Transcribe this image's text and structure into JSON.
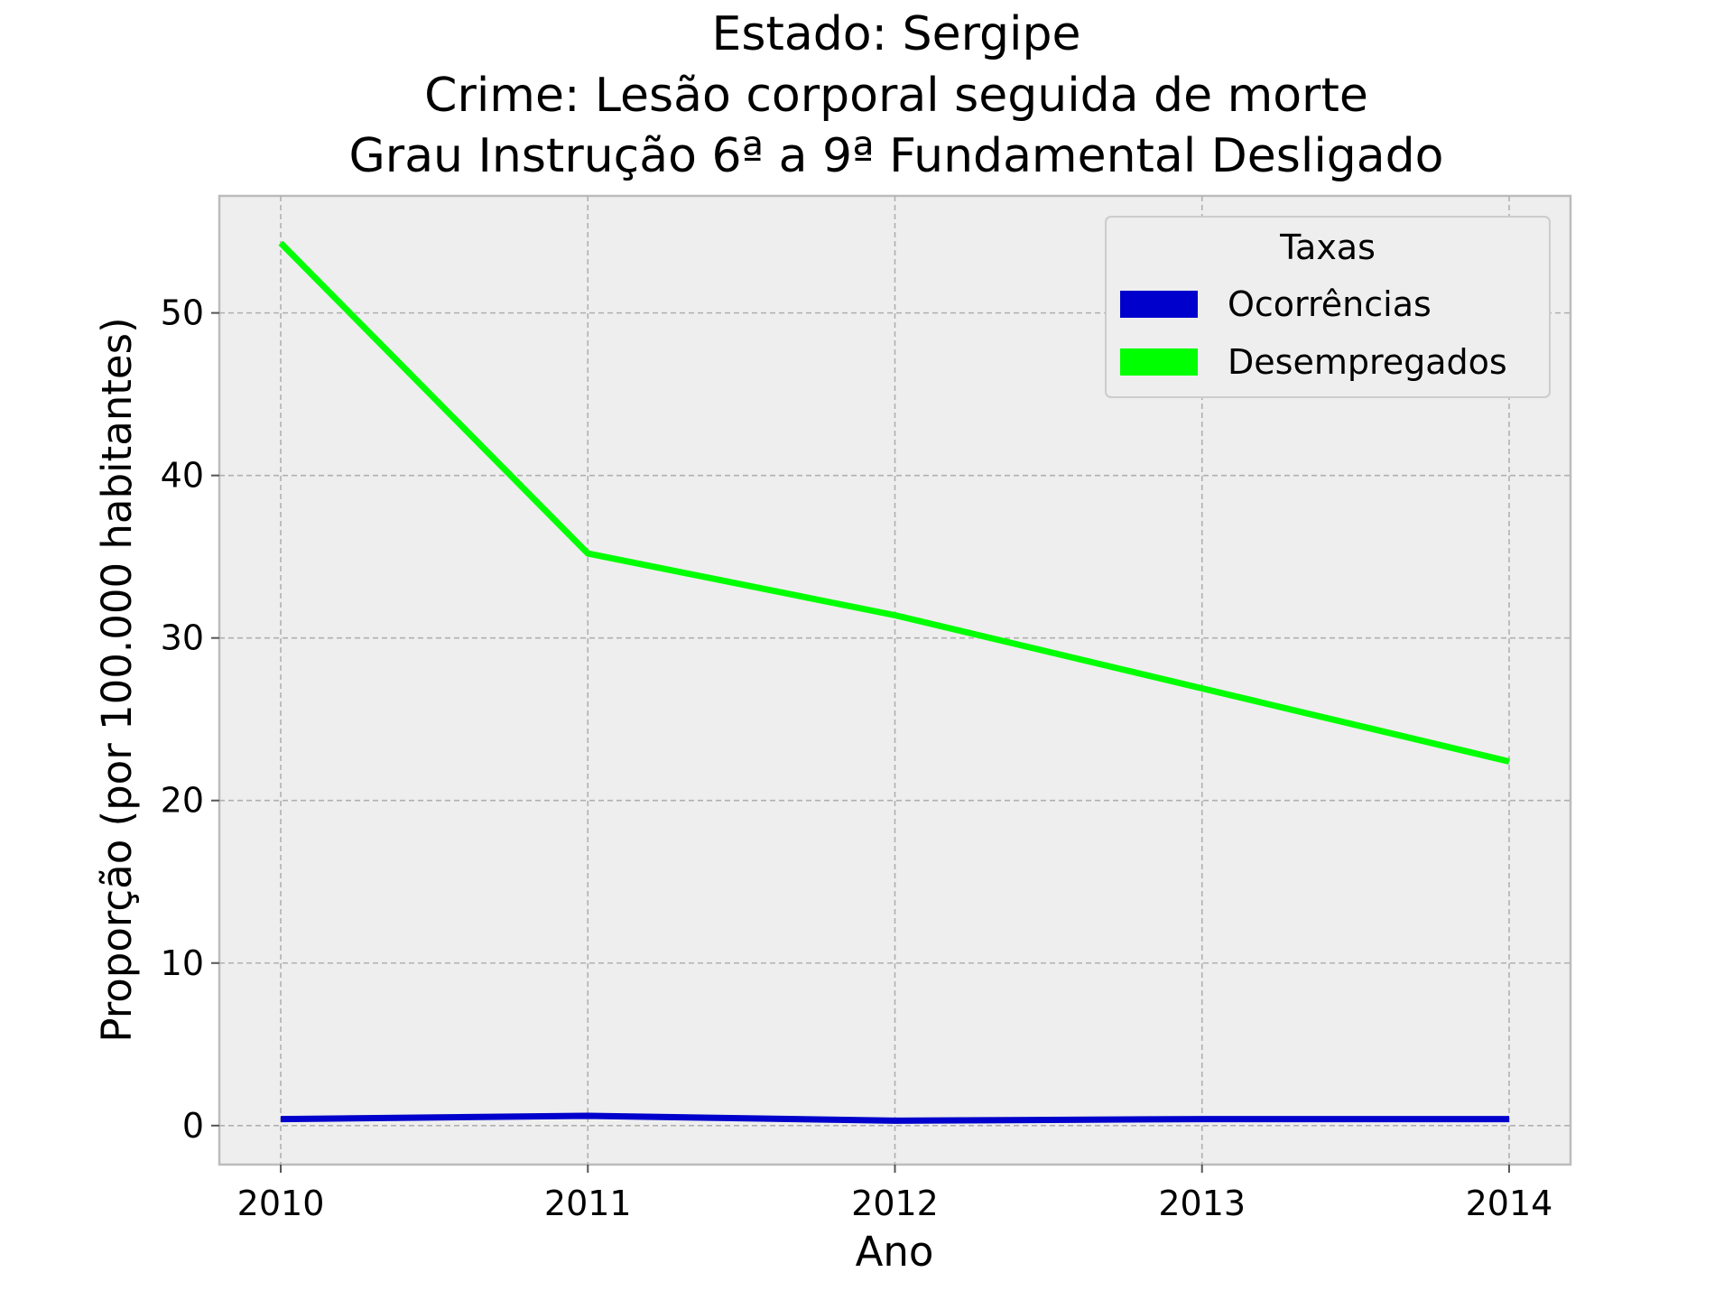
{
  "chart_data": {
    "type": "line",
    "title_lines": [
      "Estado: Sergipe",
      "Crime: Lesão corporal seguida de morte",
      "Grau Instrução  6ª a 9ª Fundamental   Desligado"
    ],
    "xlabel": "Ano",
    "ylabel": "Proporção (por 100.000 habitantes)",
    "x": [
      2010,
      2011,
      2012,
      2013,
      2014
    ],
    "x_tick_labels": [
      "2010",
      "2011",
      "2012",
      "2013",
      "2014"
    ],
    "y_ticks": [
      0,
      10,
      20,
      30,
      40,
      50
    ],
    "y_tick_labels": [
      "0",
      "10",
      "20",
      "30",
      "40",
      "50"
    ],
    "xlim": [
      2009.8,
      2014.2
    ],
    "ylim": [
      -2.4,
      57.2
    ],
    "grid": true,
    "legend": {
      "title": "Taxas",
      "position": "top-right"
    },
    "series": [
      {
        "name": "Ocorrências",
        "color": "#0000cc",
        "values": [
          0.4,
          0.6,
          0.3,
          0.4,
          0.4
        ]
      },
      {
        "name": "Desempregados",
        "color": "#00ff00",
        "values": [
          54.3,
          35.2,
          31.4,
          26.9,
          22.4
        ]
      }
    ]
  }
}
